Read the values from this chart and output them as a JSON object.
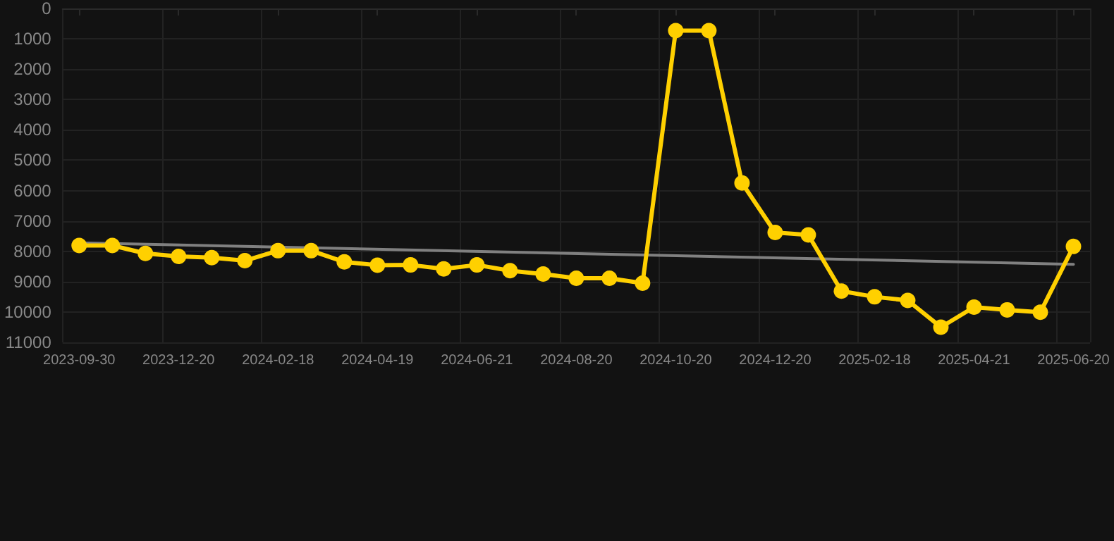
{
  "chart_data": {
    "type": "line",
    "categories": [
      "2023-09-30",
      null,
      null,
      "2023-12-20",
      null,
      null,
      "2024-02-18",
      null,
      null,
      "2024-04-19",
      null,
      null,
      "2024-06-21",
      null,
      null,
      "2024-08-20",
      null,
      null,
      "2024-10-20",
      null,
      null,
      "2024-12-20",
      null,
      null,
      "2025-02-18",
      null,
      null,
      "2025-04-21",
      null,
      null,
      "2025-06-20"
    ],
    "series": [
      {
        "color": "#ffd000",
        "marker": "circle",
        "values": [
          7810,
          7810,
          8070,
          8170,
          8210,
          8310,
          7980,
          7980,
          8350,
          8460,
          8450,
          8580,
          8450,
          8640,
          8750,
          8890,
          8890,
          9050,
          730,
          730,
          5750,
          7380,
          7460,
          9310,
          9500,
          9620,
          10500,
          9840,
          9930,
          10010,
          7840
        ]
      },
      {
        "type": "line",
        "color": "#808080",
        "marker": "none",
        "values": [
          7720,
          null,
          null,
          null,
          null,
          null,
          null,
          null,
          null,
          null,
          null,
          null,
          null,
          null,
          null,
          null,
          null,
          null,
          null,
          null,
          null,
          null,
          null,
          null,
          null,
          null,
          null,
          null,
          null,
          null,
          8430
        ]
      }
    ],
    "ylim": [
      11000,
      0
    ],
    "yticks": [
      0,
      1000,
      2000,
      3000,
      4000,
      5000,
      6000,
      7000,
      8000,
      9000,
      10000,
      11000
    ],
    "grid": true
  }
}
